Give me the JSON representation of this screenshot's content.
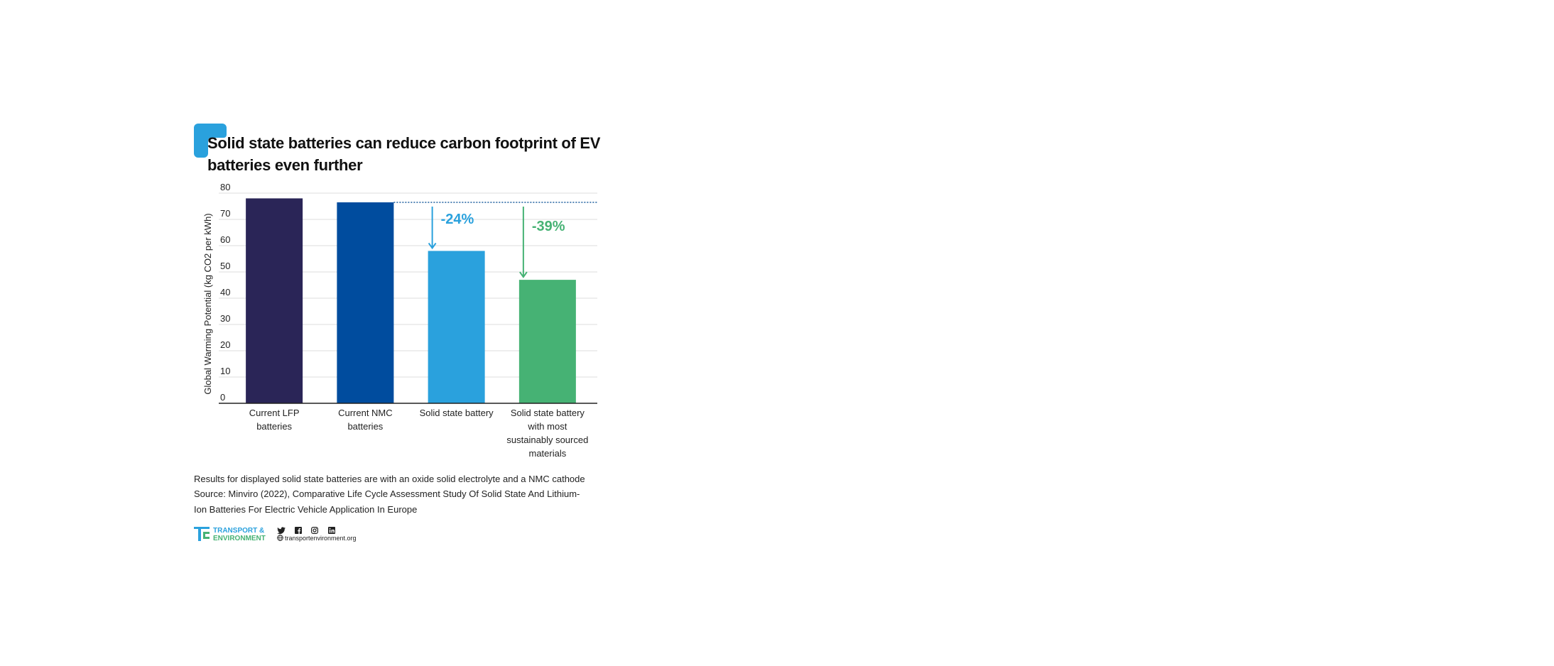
{
  "chart_data": {
    "type": "bar",
    "title": "Solid state batteries can reduce carbon footprint of EV batteries even further",
    "ylabel": "Global Warming Potential (kg CO2 per kWh)",
    "ylim": [
      0,
      80
    ],
    "yticks": [
      0,
      10,
      20,
      30,
      40,
      50,
      60,
      70,
      80
    ],
    "categories": [
      [
        "Current LFP",
        "batteries"
      ],
      [
        "Current NMC",
        "batteries"
      ],
      [
        "Solid state battery"
      ],
      [
        "Solid state battery",
        "with most",
        "sustainably sourced",
        "materials"
      ]
    ],
    "values": [
      78,
      76.5,
      58,
      47
    ],
    "colors": [
      "#2a2557",
      "#004c9e",
      "#2aa1dd",
      "#46b274"
    ],
    "reference_line": {
      "value": 76.5,
      "style": "dotted",
      "color": "#1f5f9e"
    },
    "annotations": [
      {
        "text": "-24%",
        "from": 76.5,
        "to": 58,
        "category_index": 2,
        "color": "#2aa1dd"
      },
      {
        "text": "-39%",
        "from": 76.5,
        "to": 47,
        "category_index": 3,
        "color": "#46b274"
      }
    ],
    "grid": true,
    "legend": "none"
  },
  "footnotes": {
    "line1": "Results for displayed solid state batteries are with an oxide solid electrolyte and a NMC cathode",
    "line2": "Source: Minviro (2022), Comparative Life Cycle Assessment Study Of Solid State And Lithium-",
    "line3": "Ion Batteries For Electric Vehicle Application In Europe"
  },
  "branding": {
    "logo_line1": "TRANSPORT &",
    "logo_line2": "ENVIRONMENT",
    "website": "transportenvironment.org",
    "accent_color": "#2aa1dd",
    "green_color": "#46b274",
    "social_icons": [
      "twitter-icon",
      "facebook-icon",
      "instagram-icon",
      "linkedin-icon"
    ]
  }
}
